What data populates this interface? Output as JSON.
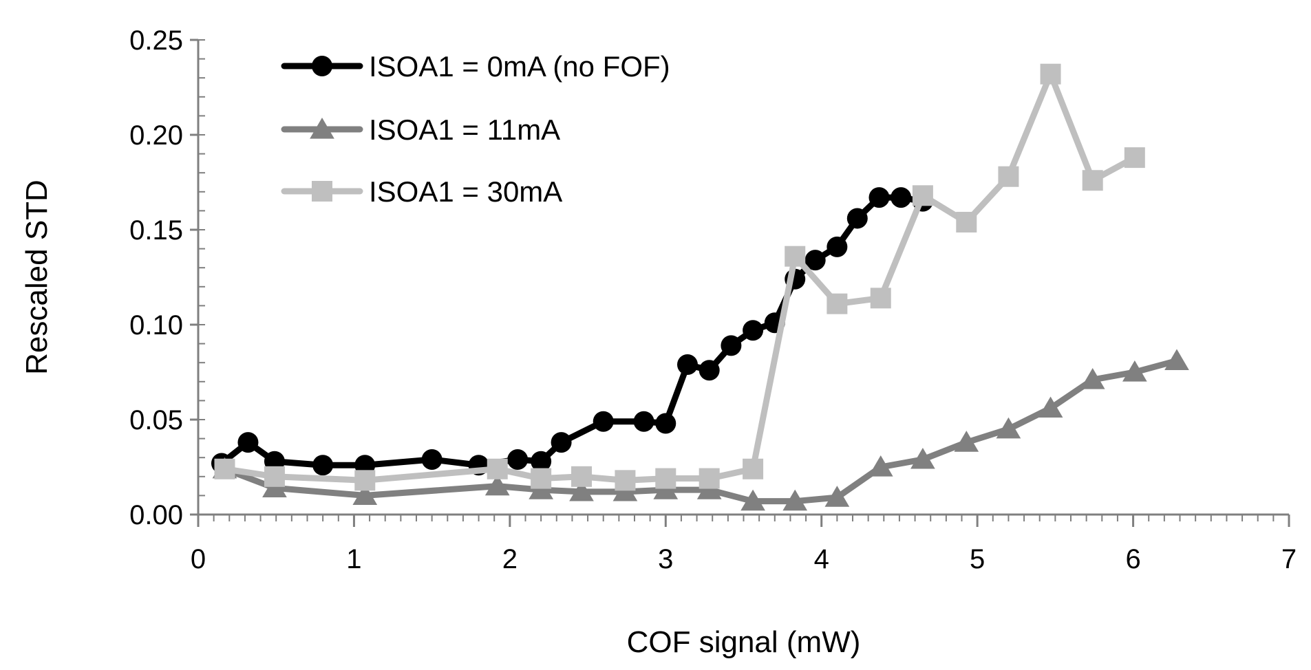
{
  "chart_data": {
    "type": "line",
    "title": "",
    "xlabel": "COF signal (mW)",
    "ylabel": "Rescaled STD",
    "xlim": [
      0,
      7
    ],
    "ylim": [
      0,
      0.25
    ],
    "x_ticks": [
      0,
      1,
      2,
      3,
      4,
      5,
      6,
      7
    ],
    "x_tick_labels": [
      "0",
      "1",
      "2",
      "3",
      "4",
      "5",
      "6",
      "7"
    ],
    "y_ticks": [
      0,
      0.05,
      0.1,
      0.15,
      0.2,
      0.25
    ],
    "y_tick_labels": [
      "0.00",
      "0.05",
      "0.10",
      "0.15",
      "0.20",
      "0.25"
    ],
    "legend_position": "top-left",
    "grid": false,
    "series": [
      {
        "name": "ISOA1 = 0mA (no FOF)",
        "color": "#000000",
        "marker": "circle",
        "x": [
          0.15,
          0.32,
          0.49,
          0.8,
          1.07,
          1.5,
          1.8,
          2.05,
          2.2,
          2.33,
          2.6,
          2.86,
          3.0,
          3.14,
          3.28,
          3.42,
          3.56,
          3.7,
          3.83,
          3.96,
          4.1,
          4.23,
          4.37,
          4.51,
          4.65
        ],
        "y": [
          0.027,
          0.038,
          0.028,
          0.026,
          0.026,
          0.029,
          0.026,
          0.029,
          0.028,
          0.038,
          0.049,
          0.049,
          0.048,
          0.079,
          0.076,
          0.089,
          0.097,
          0.101,
          0.124,
          0.134,
          0.141,
          0.156,
          0.167,
          0.167,
          0.165
        ]
      },
      {
        "name": "ISOA1 = 11mA",
        "color": "#808080",
        "marker": "triangle",
        "x": [
          0.17,
          0.49,
          1.07,
          1.92,
          2.2,
          2.46,
          2.74,
          3.0,
          3.28,
          3.56,
          3.83,
          4.1,
          4.38,
          4.65,
          4.93,
          5.2,
          5.47,
          5.74,
          6.01,
          6.28
        ],
        "y": [
          0.024,
          0.014,
          0.01,
          0.015,
          0.013,
          0.012,
          0.012,
          0.013,
          0.013,
          0.007,
          0.007,
          0.009,
          0.025,
          0.029,
          0.038,
          0.045,
          0.056,
          0.071,
          0.075,
          0.081
        ]
      },
      {
        "name": "ISOA1 = 30mA",
        "color": "#bfbfbf",
        "marker": "square",
        "x": [
          0.17,
          0.49,
          1.07,
          1.92,
          2.2,
          2.46,
          2.74,
          3.0,
          3.28,
          3.56,
          3.83,
          4.1,
          4.38,
          4.65,
          4.93,
          5.2,
          5.47,
          5.74,
          6.01
        ],
        "y": [
          0.024,
          0.02,
          0.018,
          0.024,
          0.019,
          0.02,
          0.018,
          0.019,
          0.019,
          0.024,
          0.136,
          0.111,
          0.114,
          0.168,
          0.154,
          0.178,
          0.232,
          0.176,
          0.188
        ]
      }
    ]
  }
}
